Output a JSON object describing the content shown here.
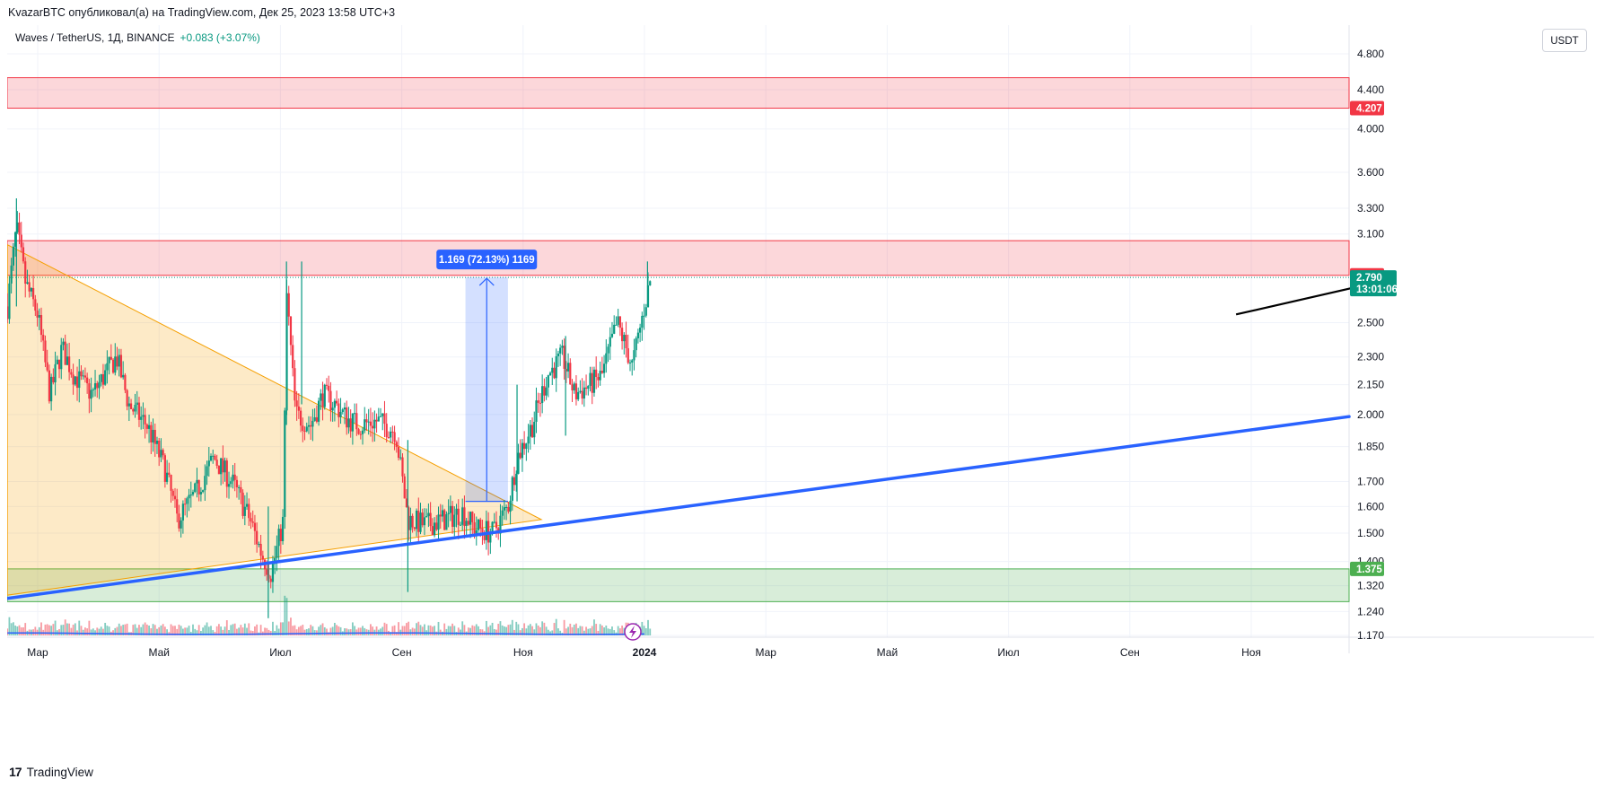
{
  "header": {
    "publish_line": "KvazarBTC опубликовал(а) на TradingView.com, Дек 25, 2023 13:58 UTC+3"
  },
  "legend": {
    "symbol": "Waves / TetherUS, 1Д, BINANCE",
    "change": "+0.083 (+3.07%)"
  },
  "toolbar": {
    "currency_label": "USDT"
  },
  "footer": {
    "brand": "TradingView",
    "logo_text": "17"
  },
  "colors": {
    "up": "#089981",
    "down": "#f23645",
    "trendline": "#2962ff",
    "resistance_zone": "#f23645",
    "support_zone": "#4caf50",
    "triangle": "#f59f00",
    "measure": "#2962ff"
  },
  "chart_data": {
    "type": "candlestick",
    "symbol": "Waves / TetherUS",
    "interval": "1Д",
    "exchange": "BINANCE",
    "y_scale": "log",
    "ylim": [
      1.14,
      5.2
    ],
    "y_ticks": [
      {
        "label": "4.800",
        "value": 4.8
      },
      {
        "label": "4.400",
        "value": 4.4
      },
      {
        "label": "4.000",
        "value": 4.0
      },
      {
        "label": "3.600",
        "value": 3.6
      },
      {
        "label": "3.300",
        "value": 3.3
      },
      {
        "label": "3.100",
        "value": 3.1
      },
      {
        "label": "2.500",
        "value": 2.5
      },
      {
        "label": "2.300",
        "value": 2.3
      },
      {
        "label": "2.150",
        "value": 2.15
      },
      {
        "label": "2.000",
        "value": 2.0
      },
      {
        "label": "1.850",
        "value": 1.85
      },
      {
        "label": "1.700",
        "value": 1.7
      },
      {
        "label": "1.600",
        "value": 1.6
      },
      {
        "label": "1.500",
        "value": 1.5
      },
      {
        "label": "1.400",
        "value": 1.4
      },
      {
        "label": "1.320",
        "value": 1.32
      },
      {
        "label": "1.240",
        "value": 1.24
      },
      {
        "label": "1.170",
        "value": 1.17
      }
    ],
    "x_ticks": [
      {
        "label": "Мар",
        "month": 2
      },
      {
        "label": "Май",
        "month": 4
      },
      {
        "label": "Июл",
        "month": 6
      },
      {
        "label": "Сен",
        "month": 8
      },
      {
        "label": "Ноя",
        "month": 10
      },
      {
        "label": "2024",
        "month": 12
      },
      {
        "label": "Мар",
        "month": 14
      },
      {
        "label": "Май",
        "month": 16
      },
      {
        "label": "Июл",
        "month": 18
      },
      {
        "label": "Сен",
        "month": 20
      },
      {
        "label": "Ноя",
        "month": 22
      }
    ],
    "price_tags": [
      {
        "label": "4.207",
        "value": 4.207,
        "color": "#f23645"
      },
      {
        "label": "2.804",
        "value": 2.804,
        "color": "#f23645"
      },
      {
        "label": "1.375",
        "value": 1.375,
        "color": "#4caf50"
      }
    ],
    "last_price": {
      "label": "2.790",
      "countdown": "13:01:06",
      "value": 2.79,
      "color": "#089981"
    },
    "zones": [
      {
        "kind": "resistance",
        "low": 4.207,
        "high": 4.53
      },
      {
        "kind": "resistance",
        "low": 2.804,
        "high": 3.05
      },
      {
        "kind": "support",
        "low": 1.27,
        "high": 1.375
      }
    ],
    "trendline": {
      "start_month": 1.5,
      "start_price": 1.28,
      "end_month": 24.3,
      "end_price": 1.99
    },
    "triangle": [
      [
        1.5,
        3.02
      ],
      [
        1.5,
        1.29
      ],
      [
        10.3,
        1.55
      ]
    ],
    "measure": {
      "label": "1.169 (72.13%) 1169",
      "start_month": 9.05,
      "end_month": 9.75,
      "from_price": 1.62,
      "to_price": 2.79
    },
    "arrow": {
      "from_month": 21.75,
      "from_price": 2.55,
      "to_month": 24.0,
      "to_price": 2.75
    },
    "price_path": [
      [
        1.5,
        2.6
      ],
      [
        1.65,
        3.15
      ],
      [
        1.8,
        2.75
      ],
      [
        2.0,
        2.55
      ],
      [
        2.2,
        2.1
      ],
      [
        2.4,
        2.35
      ],
      [
        2.6,
        2.2
      ],
      [
        2.9,
        2.1
      ],
      [
        3.1,
        2.2
      ],
      [
        3.3,
        2.3
      ],
      [
        3.5,
        2.05
      ],
      [
        3.8,
        1.95
      ],
      [
        4.1,
        1.75
      ],
      [
        4.3,
        1.55
      ],
      [
        4.6,
        1.65
      ],
      [
        4.9,
        1.8
      ],
      [
        5.2,
        1.7
      ],
      [
        5.5,
        1.55
      ],
      [
        5.7,
        1.42
      ],
      [
        5.85,
        1.36
      ],
      [
        6.05,
        1.55
      ],
      [
        6.1,
        2.7
      ],
      [
        6.25,
        2.0
      ],
      [
        6.5,
        1.95
      ],
      [
        6.7,
        2.1
      ],
      [
        6.9,
        2.05
      ],
      [
        7.1,
        1.98
      ],
      [
        7.3,
        1.95
      ],
      [
        7.6,
        1.97
      ],
      [
        7.9,
        1.92
      ],
      [
        8.1,
        1.55
      ],
      [
        8.4,
        1.53
      ],
      [
        8.7,
        1.55
      ],
      [
        9.0,
        1.58
      ],
      [
        9.2,
        1.52
      ],
      [
        9.5,
        1.5
      ],
      [
        9.75,
        1.6
      ],
      [
        9.9,
        1.8
      ],
      [
        10.15,
        1.95
      ],
      [
        10.4,
        2.2
      ],
      [
        10.65,
        2.3
      ],
      [
        10.85,
        2.1
      ],
      [
        11.1,
        2.15
      ],
      [
        11.3,
        2.2
      ],
      [
        11.55,
        2.5
      ],
      [
        11.8,
        2.25
      ],
      [
        12.0,
        2.6
      ],
      [
        12.1,
        2.78
      ]
    ],
    "spikes": [
      {
        "month": 6.1,
        "high": 2.9,
        "low": 1.95
      },
      {
        "month": 6.35,
        "high": 2.9,
        "low": 2.05
      },
      {
        "month": 1.65,
        "high": 3.38,
        "low": 2.6
      },
      {
        "month": 8.1,
        "high": 1.88,
        "low": 1.3
      },
      {
        "month": 5.8,
        "high": 1.6,
        "low": 1.22
      },
      {
        "month": 9.9,
        "high": 2.15,
        "low": 1.62
      },
      {
        "month": 10.7,
        "high": 2.42,
        "low": 1.9
      },
      {
        "month": 12.05,
        "high": 2.9,
        "low": 2.6
      }
    ]
  }
}
